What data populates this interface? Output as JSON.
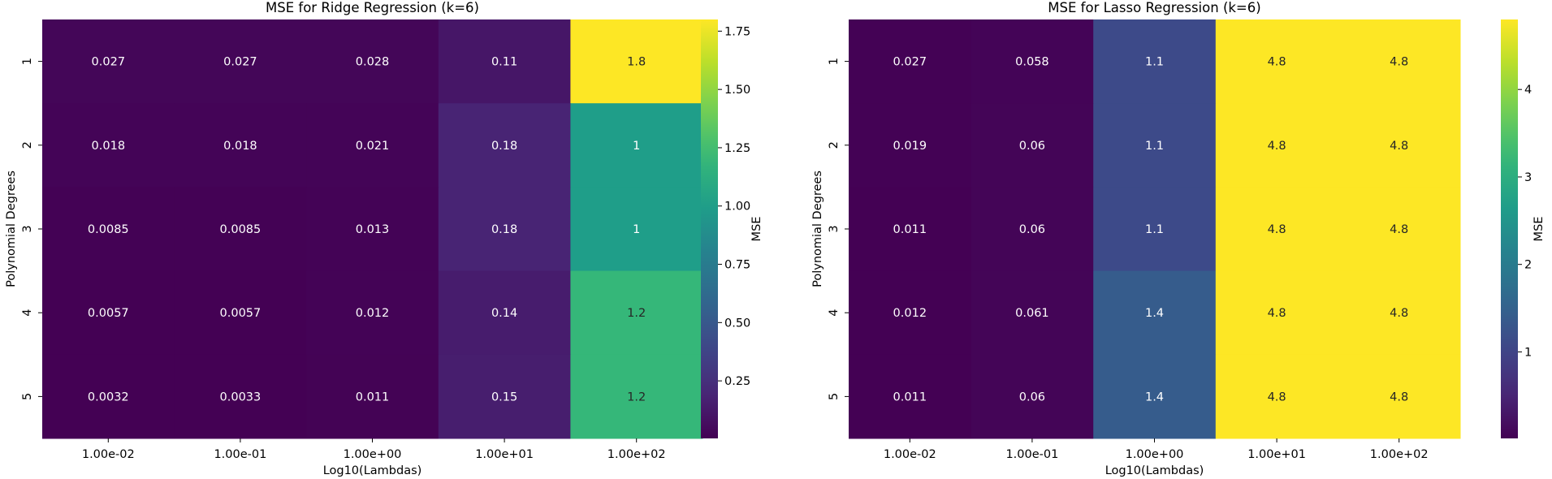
{
  "chart_data": [
    {
      "type": "heatmap",
      "title": "MSE for Ridge Regression (k=6)",
      "xlabel": "Log10(Lambdas)",
      "ylabel": "Polynomial Degrees",
      "x_tick_labels": [
        "1.00e-02",
        "1.00e-01",
        "1.00e+00",
        "1.00e+01",
        "1.00e+02"
      ],
      "y_tick_labels": [
        "1",
        "2",
        "3",
        "4",
        "5"
      ],
      "values": [
        [
          0.027,
          0.027,
          0.028,
          0.11,
          1.8
        ],
        [
          0.018,
          0.018,
          0.021,
          0.18,
          1.0
        ],
        [
          0.0085,
          0.0085,
          0.013,
          0.18,
          1.0
        ],
        [
          0.0057,
          0.0057,
          0.012,
          0.14,
          1.2
        ],
        [
          0.0032,
          0.0033,
          0.011,
          0.15,
          1.2
        ]
      ],
      "cell_labels": [
        [
          "0.027",
          "0.027",
          "0.028",
          "0.11",
          "1.8"
        ],
        [
          "0.018",
          "0.018",
          "0.021",
          "0.18",
          "1"
        ],
        [
          "0.0085",
          "0.0085",
          "0.013",
          "0.18",
          "1"
        ],
        [
          "0.0057",
          "0.0057",
          "0.012",
          "0.14",
          "1.2"
        ],
        [
          "0.0032",
          "0.0033",
          "0.011",
          "0.15",
          "1.2"
        ]
      ],
      "colormap": "viridis",
      "colorbar": {
        "label": "MSE",
        "min": 0.0032,
        "max": 1.8,
        "ticks": [
          0.25,
          0.5,
          0.75,
          1.0,
          1.25,
          1.5,
          1.75
        ],
        "tick_labels": [
          "0.25",
          "0.50",
          "0.75",
          "1.00",
          "1.25",
          "1.50",
          "1.75"
        ]
      }
    },
    {
      "type": "heatmap",
      "title": "MSE for Lasso Regression (k=6)",
      "xlabel": "Log10(Lambdas)",
      "ylabel": "Polynomial Degrees",
      "x_tick_labels": [
        "1.00e-02",
        "1.00e-01",
        "1.00e+00",
        "1.00e+01",
        "1.00e+02"
      ],
      "y_tick_labels": [
        "1",
        "2",
        "3",
        "4",
        "5"
      ],
      "values": [
        [
          0.027,
          0.058,
          1.1,
          4.8,
          4.8
        ],
        [
          0.019,
          0.06,
          1.1,
          4.8,
          4.8
        ],
        [
          0.011,
          0.06,
          1.1,
          4.8,
          4.8
        ],
        [
          0.012,
          0.061,
          1.4,
          4.8,
          4.8
        ],
        [
          0.011,
          0.06,
          1.4,
          4.8,
          4.8
        ]
      ],
      "cell_labels": [
        [
          "0.027",
          "0.058",
          "1.1",
          "4.8",
          "4.8"
        ],
        [
          "0.019",
          "0.06",
          "1.1",
          "4.8",
          "4.8"
        ],
        [
          "0.011",
          "0.06",
          "1.1",
          "4.8",
          "4.8"
        ],
        [
          "0.012",
          "0.061",
          "1.4",
          "4.8",
          "4.8"
        ],
        [
          "0.011",
          "0.06",
          "1.4",
          "4.8",
          "4.8"
        ]
      ],
      "colormap": "viridis",
      "colorbar": {
        "label": "MSE",
        "min": 0.011,
        "max": 4.8,
        "ticks": [
          1,
          2,
          3,
          4
        ],
        "tick_labels": [
          "1",
          "2",
          "3",
          "4"
        ]
      }
    }
  ]
}
